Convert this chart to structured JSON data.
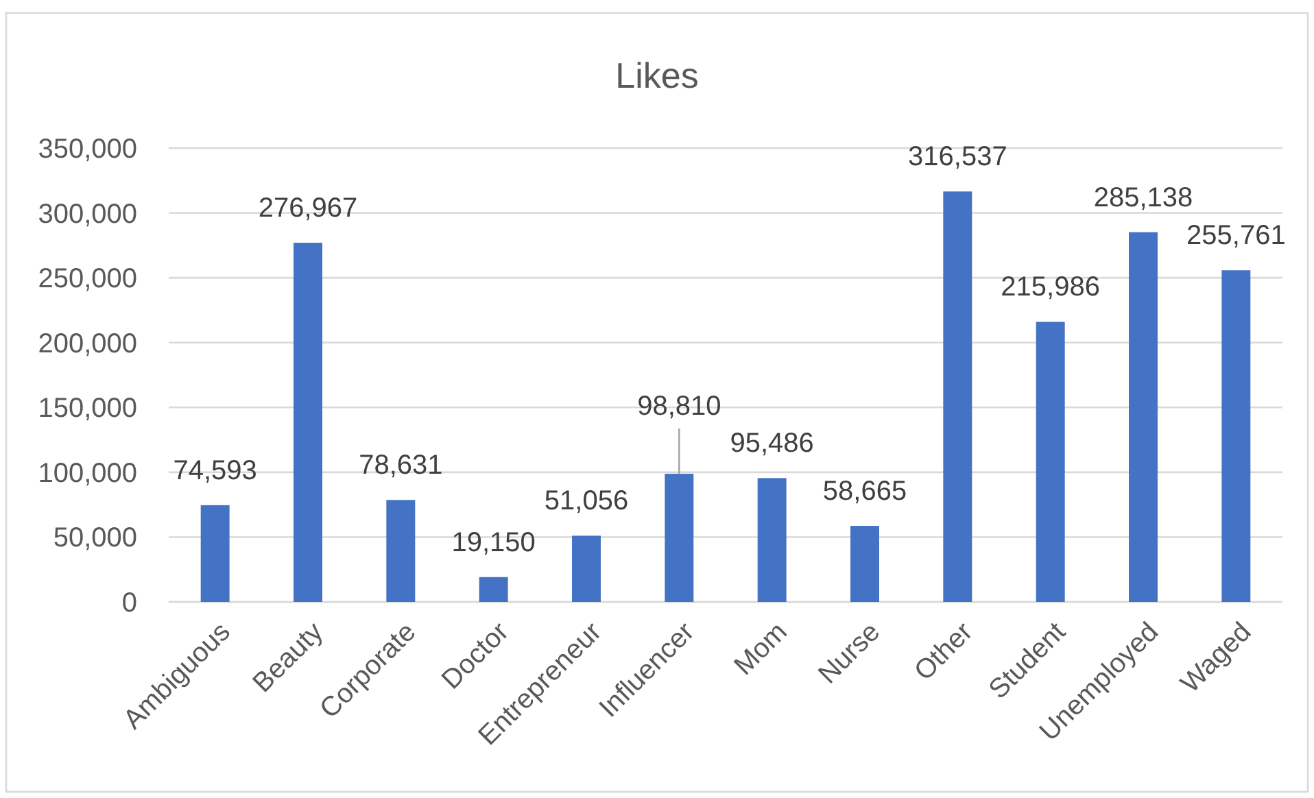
{
  "chart_data": {
    "type": "bar",
    "title": "Likes",
    "categories": [
      "Ambiguous",
      "Beauty",
      "Corporate",
      "Doctor",
      "Entrepreneur",
      "Influencer",
      "Mom",
      "Nurse",
      "Other",
      "Student",
      "Unemployed",
      "Waged"
    ],
    "values": [
      74593,
      276967,
      78631,
      19150,
      51056,
      98810,
      95486,
      58665,
      316537,
      215986,
      285138,
      255761
    ],
    "value_labels": [
      "74,593",
      "276,967",
      "78,631",
      "19,150",
      "51,056",
      "98,810",
      "95,486",
      "58,665",
      "316,537",
      "215,986",
      "285,138",
      "255,761"
    ],
    "color": "#4472c4",
    "ylim": [
      0,
      350000
    ],
    "yticks": [
      0,
      {
        "value": 50000,
        "label": "50,000"
      },
      {
        "value": 100000,
        "label": "100,000"
      },
      {
        "value": 150000,
        "label": "150,000"
      },
      {
        "value": 200000,
        "label": "200,000"
      },
      {
        "value": 250000,
        "label": "250,000"
      },
      {
        "value": 300000,
        "label": "300,000"
      },
      {
        "value": 350000,
        "label": "350,000"
      }
    ],
    "grid": "y"
  }
}
